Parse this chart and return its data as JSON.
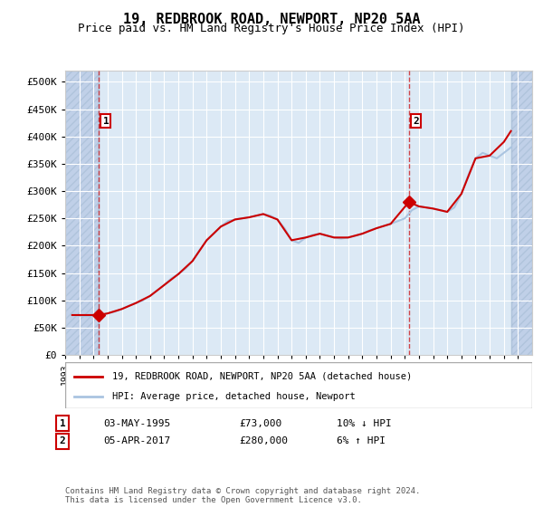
{
  "title": "19, REDBROOK ROAD, NEWPORT, NP20 5AA",
  "subtitle": "Price paid vs. HM Land Registry's House Price Index (HPI)",
  "xlabel": "",
  "ylabel": "",
  "ylim": [
    0,
    520000
  ],
  "yticks": [
    0,
    50000,
    100000,
    150000,
    200000,
    250000,
    300000,
    350000,
    400000,
    450000,
    500000
  ],
  "ytick_labels": [
    "£0",
    "£50K",
    "£100K",
    "£150K",
    "£200K",
    "£250K",
    "£300K",
    "£350K",
    "£400K",
    "£450K",
    "£500K"
  ],
  "background_color": "#ffffff",
  "plot_bg_color": "#dce9f5",
  "hatch_color": "#c0d0e8",
  "grid_color": "#ffffff",
  "sale1_date": "1995-05-03",
  "sale1_price": 73000,
  "sale1_label": "1",
  "sale2_date": "2017-04-05",
  "sale2_price": 280000,
  "sale2_label": "2",
  "hpi_line_color": "#aac4e0",
  "price_line_color": "#cc0000",
  "marker_color": "#cc0000",
  "vline_color": "#cc0000",
  "legend_label_price": "19, REDBROOK ROAD, NEWPORT, NP20 5AA (detached house)",
  "legend_label_hpi": "HPI: Average price, detached house, Newport",
  "table_row1": [
    "1",
    "03-MAY-1995",
    "£73,000",
    "10% ↓ HPI"
  ],
  "table_row2": [
    "2",
    "05-APR-2017",
    "£280,000",
    "6% ↑ HPI"
  ],
  "footnote": "Contains HM Land Registry data © Crown copyright and database right 2024.\nThis data is licensed under the Open Government Licence v3.0.",
  "hpi_data_x": [
    1993.5,
    1994.0,
    1994.5,
    1995.0,
    1995.5,
    1996.0,
    1996.5,
    1997.0,
    1997.5,
    1998.0,
    1998.5,
    1999.0,
    1999.5,
    2000.0,
    2000.5,
    2001.0,
    2001.5,
    2002.0,
    2002.5,
    2003.0,
    2003.5,
    2004.0,
    2004.5,
    2005.0,
    2005.5,
    2006.0,
    2006.5,
    2007.0,
    2007.5,
    2008.0,
    2008.5,
    2009.0,
    2009.5,
    2010.0,
    2010.5,
    2011.0,
    2011.5,
    2012.0,
    2012.5,
    2013.0,
    2013.5,
    2014.0,
    2014.5,
    2015.0,
    2015.5,
    2016.0,
    2016.5,
    2017.0,
    2017.5,
    2018.0,
    2018.5,
    2019.0,
    2019.5,
    2020.0,
    2020.5,
    2021.0,
    2021.5,
    2022.0,
    2022.5,
    2023.0,
    2023.5,
    2024.0,
    2024.5
  ],
  "hpi_data_y": [
    73000,
    72000,
    71000,
    72000,
    73000,
    76000,
    79000,
    84000,
    90000,
    95000,
    100000,
    108000,
    118000,
    128000,
    140000,
    148000,
    158000,
    172000,
    192000,
    210000,
    222000,
    235000,
    245000,
    248000,
    250000,
    252000,
    255000,
    258000,
    255000,
    248000,
    232000,
    210000,
    205000,
    215000,
    220000,
    222000,
    218000,
    215000,
    213000,
    215000,
    218000,
    222000,
    228000,
    232000,
    236000,
    240000,
    245000,
    250000,
    265000,
    272000,
    270000,
    268000,
    265000,
    262000,
    270000,
    295000,
    330000,
    360000,
    370000,
    365000,
    360000,
    370000,
    380000
  ],
  "price_data_x": [
    1993.5,
    1995.37,
    1996.0,
    1997.0,
    1998.0,
    1999.0,
    2000.0,
    2001.0,
    2002.0,
    2003.0,
    2004.0,
    2005.0,
    2006.0,
    2007.0,
    2008.0,
    2009.0,
    2010.0,
    2011.0,
    2012.0,
    2013.0,
    2014.0,
    2015.0,
    2016.0,
    2017.29,
    2018.0,
    2019.0,
    2020.0,
    2021.0,
    2022.0,
    2023.0,
    2024.0,
    2024.5
  ],
  "price_data_y": [
    73000,
    73000,
    76000,
    84000,
    95000,
    108000,
    128000,
    148000,
    172000,
    210000,
    235000,
    248000,
    252000,
    258000,
    248000,
    210000,
    215000,
    222000,
    215000,
    215000,
    222000,
    232000,
    240000,
    280000,
    272000,
    268000,
    262000,
    295000,
    360000,
    365000,
    390000,
    410000
  ]
}
